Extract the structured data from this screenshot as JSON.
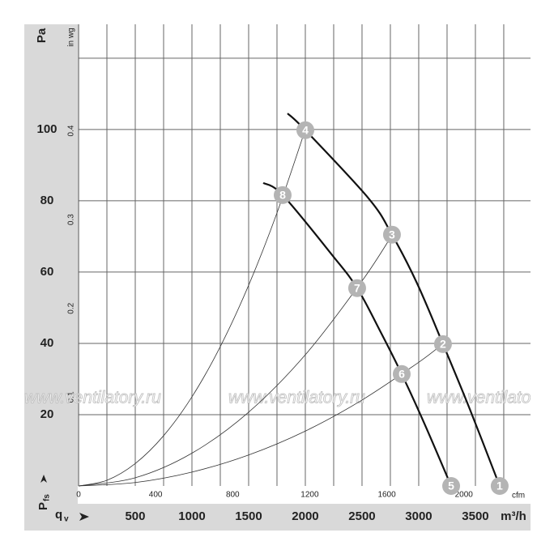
{
  "chart_data": {
    "type": "line",
    "y_label": "Pa",
    "y2_label": "in wg",
    "x_label": "m³/h",
    "x2_label": "cfm",
    "x_symbol": "q",
    "x_symbol_sub": "v",
    "y_symbol": "P",
    "y_symbol_sub": "fs",
    "watermark": "www.ventilatory.ru",
    "xlim": [
      0,
      3986
    ],
    "xticks": [
      500,
      1000,
      1500,
      2000,
      2500,
      3000,
      3500
    ],
    "x_grid_lines": [
      250,
      500,
      750,
      1000,
      1250,
      1500,
      1750,
      2000,
      2250,
      2500,
      2750,
      3000,
      3250,
      3500,
      3750
    ],
    "x2lim": [
      0,
      2346
    ],
    "x2ticks": [
      0,
      400,
      800,
      1200,
      1600,
      2000
    ],
    "ylim": [
      0,
      129.5
    ],
    "yticks": [
      20,
      40,
      60,
      80,
      100
    ],
    "y_grid_lines": [
      20,
      40,
      60,
      80,
      100,
      120
    ],
    "y2lim": [
      0,
      0.52
    ],
    "y2ticks": [
      0.1,
      0.2,
      0.3,
      0.4
    ],
    "series": [
      {
        "color": "#111111",
        "width": 2.2,
        "x": [
          1843,
          2000,
          2557,
          2764,
          2986,
          3214,
          3450,
          3714
        ],
        "values": [
          104.5,
          99.8,
          80.7,
          70.5,
          56.8,
          39.8,
          21.6,
          0
        ]
      },
      {
        "color": "#111111",
        "width": 2.2,
        "x": [
          1629,
          1800,
          2236,
          2457,
          2664,
          2850,
          3057,
          3286
        ],
        "values": [
          85,
          81.6,
          64.8,
          55.5,
          43.2,
          31.4,
          17,
          0
        ]
      },
      {
        "color": "#333333",
        "width": 0.8,
        "x": [
          0,
          250,
          500,
          750,
          1000,
          1250,
          1500,
          1750,
          2000
        ],
        "values": [
          0,
          1.6,
          6.3,
          14.1,
          25,
          39.1,
          56.3,
          76.6,
          100
        ]
      },
      {
        "color": "#333333",
        "width": 0.8,
        "x": [
          0,
          500,
          1000,
          1500,
          2000,
          2500,
          2764
        ],
        "values": [
          0,
          2.3,
          9.2,
          20.7,
          36.8,
          57.5,
          70.3
        ]
      },
      {
        "color": "#333333",
        "width": 0.8,
        "x": [
          0,
          500,
          1000,
          1500,
          2000,
          2500,
          3000,
          3214
        ],
        "values": [
          0,
          0.97,
          3.9,
          8.7,
          15.4,
          24.1,
          34.7,
          39.9
        ]
      }
    ],
    "points": [
      {
        "label": "1",
        "x": 3714,
        "y": 0
      },
      {
        "label": "2",
        "x": 3214,
        "y": 39.8
      },
      {
        "label": "3",
        "x": 2764,
        "y": 70.5
      },
      {
        "label": "4",
        "x": 2000,
        "y": 99.8
      },
      {
        "label": "5",
        "x": 3286,
        "y": 0
      },
      {
        "label": "6",
        "x": 2850,
        "y": 31.4
      },
      {
        "label": "7",
        "x": 2457,
        "y": 55.5
      },
      {
        "label": "8",
        "x": 1800,
        "y": 81.6
      }
    ],
    "point_color": "#b4b4b4"
  }
}
